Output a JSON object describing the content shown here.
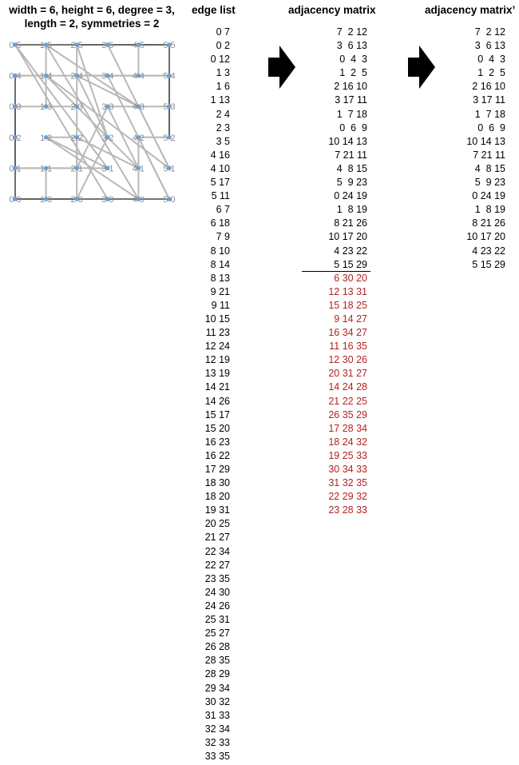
{
  "title_line1": "width = 6, height = 6, degree = 3,",
  "title_line2": "length = 2, symmetries = 2",
  "headers": {
    "edge_list": "edge list",
    "adjacency": "adjacency matrix",
    "adjacency_prime": "adjacency matrix’"
  },
  "grid": {
    "width": 6,
    "height": 6
  },
  "colors": {
    "node": "#6a9fd8",
    "edge": "#b8b8b8",
    "boundary": "#606060",
    "red": "#b22222"
  },
  "edges": [
    "0 7",
    "0 2",
    "0 12",
    "1 3",
    "1 6",
    "1 13",
    "2 4",
    "2 3",
    "3 5",
    "4 16",
    "4 10",
    "5 17",
    "5 11",
    "6 7",
    "6 18",
    "7 9",
    "8 10",
    "8 14",
    "8 13",
    "9 21",
    "9 11",
    "10 15",
    "11 23",
    "12 24",
    "12 19",
    "13 19",
    "14 21",
    "14 26",
    "15 17",
    "15 20",
    "16 23",
    "16 22",
    "17 29",
    "18 30",
    "18 20",
    "19 31",
    "20 25",
    "21 27",
    "22 34",
    "22 27",
    "23 35",
    "24 30",
    "24 26",
    "25 31",
    "25 27",
    "26 28",
    "28 35",
    "28 29",
    "29 34",
    "30 32",
    "31 33",
    "32 34",
    "32 33",
    "33 35"
  ],
  "adjacency_black": [
    "7  2 12",
    "3  6 13",
    "0  4  3",
    "1  2  5",
    "2 16 10",
    "3 17 11",
    "1  7 18",
    "0  6  9",
    "10 14 13",
    "7 21 11",
    "4  8 15",
    "5  9 23",
    "0 24 19",
    "1  8 19",
    "8 21 26",
    "10 17 20",
    "4 23 22",
    "5 15 29"
  ],
  "adjacency_red": [
    "6 30 20",
    "12 13 31",
    "15 18 25",
    "9 14 27",
    "16 34 27",
    "11 16 35",
    "12 30 26",
    "20 31 27",
    "14 24 28",
    "21 22 25",
    "26 35 29",
    "17 28 34",
    "18 24 32",
    "19 25 33",
    "30 34 33",
    "31 32 35",
    "22 29 32",
    "23 28 33"
  ],
  "adjacency_prime": [
    "7  2 12",
    "3  6 13",
    "0  4  3",
    "1  2  5",
    "2 16 10",
    "3 17 11",
    "1  7 18",
    "0  6  9",
    "10 14 13",
    "7 21 11",
    "4  8 15",
    "5  9 23",
    "0 24 19",
    "1  8 19",
    "8 21 26",
    "10 17 20",
    "4 23 22",
    "5 15 29"
  ]
}
